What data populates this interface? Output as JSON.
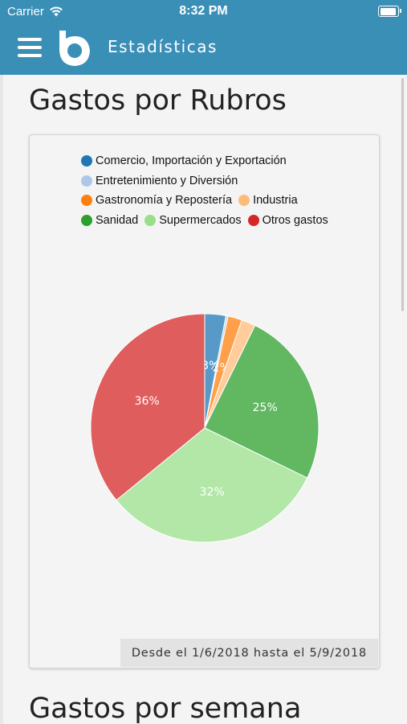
{
  "status_bar": {
    "carrier": "Carrier",
    "time": "8:32 PM",
    "battery_level": 1.0
  },
  "nav": {
    "menu_icon": "hamburger-menu-icon",
    "logo_icon": "app-logo-icon",
    "title": "Estadísticas",
    "color": "#3a8fb7"
  },
  "section1": {
    "title": "Gastos por Rubros",
    "date_range": "Desde el 1/6/2018 hasta el 5/9/2018"
  },
  "section2": {
    "title": "Gastos por semana"
  },
  "chart_data": {
    "type": "pie",
    "legend_placement": "top",
    "slices": [
      {
        "label": "Comercio, Importación y Exportación",
        "value": 3,
        "color": "#1f77b4",
        "data_label": "3%"
      },
      {
        "label": "Entretenimiento y Diversión",
        "value": 0.3,
        "color": "#aec7e8",
        "data_label": ""
      },
      {
        "label": "Gastronomía y Repostería",
        "value": 2,
        "color": "#ff7f0e",
        "data_label": "2%"
      },
      {
        "label": "Industria",
        "value": 2,
        "color": "#ffbb78",
        "data_label": ""
      },
      {
        "label": "Sanidad",
        "value": 25,
        "color": "#2ca02c",
        "data_label": "25%"
      },
      {
        "label": "Supermercados",
        "value": 32,
        "color": "#98df8a",
        "data_label": "32%"
      },
      {
        "label": "Otros gastos",
        "value": 36,
        "color": "#d62728",
        "data_label": "36%"
      }
    ]
  }
}
